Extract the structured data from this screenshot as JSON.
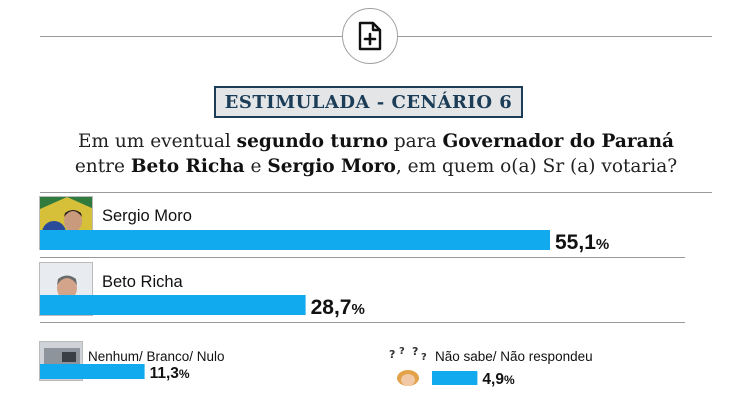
{
  "header": {
    "icon": "document-plus-icon",
    "label": "ESTIMULADA - CENÁRIO 6"
  },
  "question": {
    "line1_a": "Em um eventual ",
    "line1_b": "segundo turno",
    "line1_c": " para ",
    "line1_d": "Governador do Paraná",
    "line2_a": "entre ",
    "line2_b": "Beto Richa",
    "line2_c": " e ",
    "line2_d": "Sergio Moro",
    "line2_e": ", em quem o(a) Sr (a) votaria?"
  },
  "colors": {
    "bar": "#12aaee",
    "label_border": "#1b3d57",
    "label_bg": "#e3e5e7"
  },
  "chart_data": {
    "type": "bar",
    "categories": [
      "Sergio Moro",
      "Beto Richa",
      "Nenhum/ Branco/ Nulo",
      "Não sabe/ Não respondeu"
    ],
    "values": [
      55.1,
      28.7,
      11.3,
      4.9
    ],
    "value_labels": [
      "55,1",
      "28,7",
      "11,3",
      "4,9"
    ],
    "unit": "%",
    "title": "",
    "xlabel": "",
    "ylabel": ""
  }
}
